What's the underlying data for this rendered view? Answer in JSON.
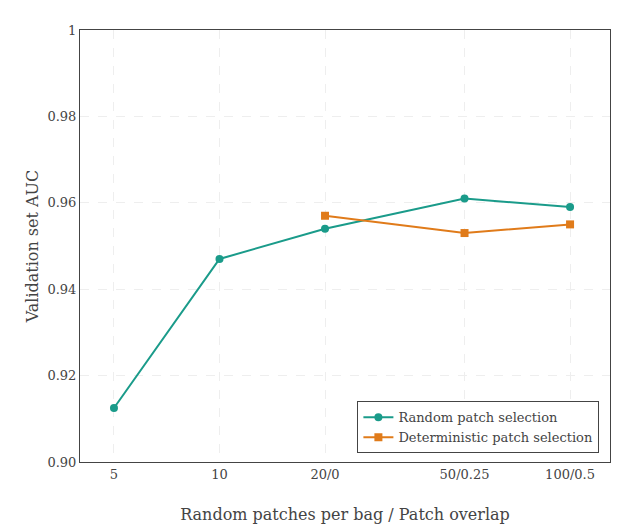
{
  "chart_data": {
    "type": "line",
    "xlabel": "Random patches per bag / Patch overlap",
    "ylabel": "Validation set AUC",
    "log": "x",
    "grid": true,
    "legend": "lower right",
    "xlim": [
      4,
      130
    ],
    "xticks": [
      5,
      10,
      {
        "value": 20,
        "label": "20/0"
      },
      {
        "value": 50,
        "label": "50/0.25"
      },
      {
        "value": 100,
        "label": "100/0.5"
      }
    ],
    "ylim": [
      0.9,
      1.0
    ],
    "yticks": [
      {
        "value": 0.9,
        "label": "0.90"
      },
      0.92,
      0.94,
      0.96,
      0.98,
      1
    ],
    "series": [
      {
        "name": "Random patch selection",
        "color": "#1a9b8a",
        "marker": "circle",
        "x": [
          5,
          10,
          20,
          50,
          100
        ],
        "values": [
          0.9125,
          0.947,
          0.954,
          0.961,
          0.959
        ]
      },
      {
        "name": "Deterministic patch selection",
        "color": "#e07b1a",
        "marker": "square",
        "x": [
          20,
          50,
          100
        ],
        "values": [
          0.957,
          0.953,
          0.955
        ]
      }
    ]
  }
}
